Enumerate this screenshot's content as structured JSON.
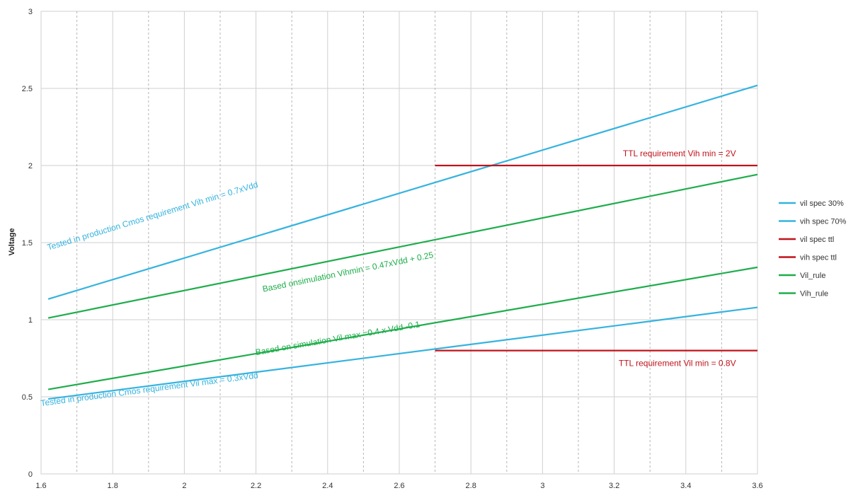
{
  "chart_data": {
    "type": "line",
    "title": "",
    "xlabel": "",
    "ylabel": "Voltage",
    "xlim": [
      1.6,
      3.6
    ],
    "ylim": [
      0,
      3
    ],
    "x_ticks": [
      "1.6",
      "1.8",
      "2",
      "2.2",
      "2.4",
      "2.6",
      "2.8",
      "3",
      "3.2",
      "3.4",
      "3.6"
    ],
    "y_ticks": [
      "0",
      "0.5",
      "1",
      "1.5",
      "2",
      "2.5",
      "3"
    ],
    "grid": true,
    "legend_position": "right",
    "series": [
      {
        "name": "vil spec 30%",
        "color": "#35b3df",
        "points": [
          [
            1.62,
            0.486
          ],
          [
            3.6,
            1.08
          ]
        ]
      },
      {
        "name": "vih spec 70%",
        "color": "#35b3df",
        "points": [
          [
            1.62,
            1.134
          ],
          [
            3.6,
            2.52
          ]
        ]
      },
      {
        "name": "vil spec ttl",
        "color": "#c0141c",
        "points": [
          [
            2.7,
            0.8
          ],
          [
            3.6,
            0.8
          ]
        ]
      },
      {
        "name": "vih spec ttl",
        "color": "#c0141c",
        "points": [
          [
            2.7,
            2.0
          ],
          [
            3.6,
            2.0
          ]
        ]
      },
      {
        "name": "Vil_rule",
        "color": "#1ead4b",
        "points": [
          [
            1.62,
            0.548
          ],
          [
            3.6,
            1.34
          ]
        ]
      },
      {
        "name": "Vih_rule",
        "color": "#1ead4b",
        "points": [
          [
            1.62,
            1.011
          ],
          [
            3.6,
            1.942
          ]
        ]
      }
    ],
    "annotations": [
      {
        "text": "Tested in production Cmos requirement Vih min = 0.7xVdd",
        "x": 1.62,
        "y": 1.45,
        "rotate_to_series": 1,
        "color": "#35b3df"
      },
      {
        "text": "Based onsimulation Vihmin = 0.47xVdd + 0.25",
        "x": 2.22,
        "y": 1.18,
        "rotate_to_series": 5,
        "color": "#1ead4b"
      },
      {
        "text": "Based on simulation Vil max =0.4 x Vdd -0.1",
        "x": 2.2,
        "y": 0.77,
        "rotate_to_series": 4,
        "color": "#1ead4b"
      },
      {
        "text": "Tested in production Cmos requirement Vil max = 0.3xVdd",
        "x": 1.6,
        "y": 0.44,
        "rotate_to_series": 0,
        "color": "#35b3df"
      },
      {
        "text": "TTL requirement Vih min = 2V",
        "x": 3.54,
        "y": 2.06,
        "rotate_to_series": null,
        "color": "#c0141c",
        "anchor": "end"
      },
      {
        "text": "TTL requirement Vil min = 0.8V",
        "x": 3.54,
        "y": 0.7,
        "rotate_to_series": null,
        "color": "#c0141c",
        "anchor": "end"
      }
    ]
  }
}
